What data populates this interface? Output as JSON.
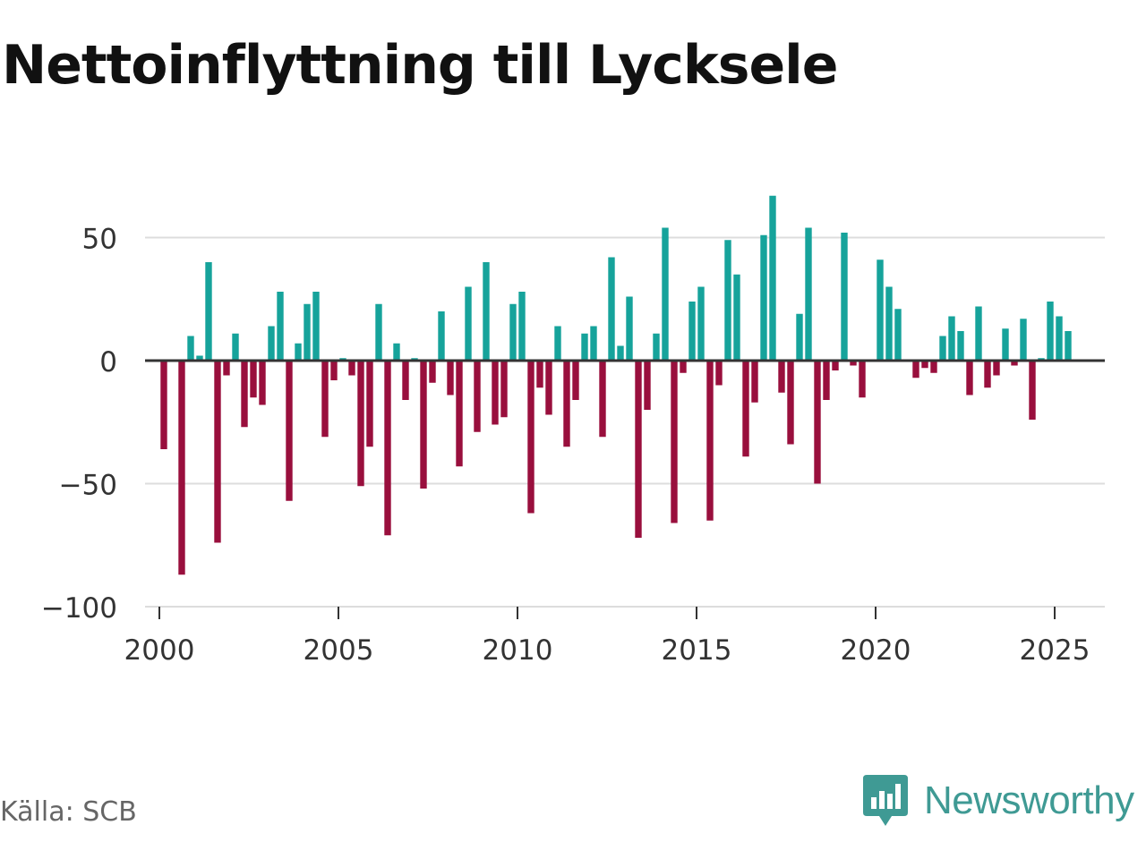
{
  "title": "Nettoinflyttning till Lycksele",
  "source": "Källa: SCB",
  "brand": {
    "name": "Newsworthy",
    "icon": "newsworthy-logo-icon",
    "color": "#3f9a94"
  },
  "colors": {
    "positive": "#16a39b",
    "negative": "#990f3d",
    "grid": "#dddddd",
    "zero_line": "#333333",
    "tick_text": "#333333"
  },
  "chart_data": {
    "type": "bar",
    "title": "Nettoinflyttning till Lycksele",
    "xlabel": "",
    "ylabel": "",
    "ylim": [
      -100,
      68
    ],
    "xlim": [
      1999.6,
      2026.4
    ],
    "yticks": [
      50,
      0,
      -50,
      -100
    ],
    "ytick_labels": [
      "50",
      "0",
      "−50",
      "−100"
    ],
    "xticks": [
      2000,
      2005,
      2010,
      2015,
      2020,
      2025
    ],
    "xtick_labels": [
      "2000",
      "2005",
      "2010",
      "2015",
      "2020",
      "2025"
    ],
    "grid": true,
    "legend": "none",
    "frequency": "quarterly",
    "x": [
      2000.125,
      2000.375,
      2000.625,
      2000.875,
      2001.125,
      2001.375,
      2001.625,
      2001.875,
      2002.125,
      2002.375,
      2002.625,
      2002.875,
      2003.125,
      2003.375,
      2003.625,
      2003.875,
      2004.125,
      2004.375,
      2004.625,
      2004.875,
      2005.125,
      2005.375,
      2005.625,
      2005.875,
      2006.125,
      2006.375,
      2006.625,
      2006.875,
      2007.125,
      2007.375,
      2007.625,
      2007.875,
      2008.125,
      2008.375,
      2008.625,
      2008.875,
      2009.125,
      2009.375,
      2009.625,
      2009.875,
      2010.125,
      2010.375,
      2010.625,
      2010.875,
      2011.125,
      2011.375,
      2011.625,
      2011.875,
      2012.125,
      2012.375,
      2012.625,
      2012.875,
      2013.125,
      2013.375,
      2013.625,
      2013.875,
      2014.125,
      2014.375,
      2014.625,
      2014.875,
      2015.125,
      2015.375,
      2015.625,
      2015.875,
      2016.125,
      2016.375,
      2016.625,
      2016.875,
      2017.125,
      2017.375,
      2017.625,
      2017.875,
      2018.125,
      2018.375,
      2018.625,
      2018.875,
      2019.125,
      2019.375,
      2019.625,
      2019.875,
      2020.125,
      2020.375,
      2020.625,
      2020.875,
      2021.125,
      2021.375,
      2021.625,
      2021.875,
      2022.125,
      2022.375,
      2022.625,
      2022.875,
      2023.125,
      2023.375,
      2023.625,
      2023.875,
      2024.125,
      2024.375,
      2024.625,
      2024.875,
      2025.125,
      2025.375,
      2025.625
    ],
    "values": [
      -36,
      0,
      -87,
      10,
      2,
      40,
      -74,
      -6,
      11,
      -27,
      -15,
      -18,
      14,
      28,
      -57,
      7,
      23,
      28,
      -31,
      -8,
      1,
      -6,
      -51,
      -35,
      23,
      -71,
      7,
      -16,
      1,
      -52,
      -9,
      20,
      -14,
      -43,
      30,
      -29,
      40,
      -26,
      -23,
      23,
      28,
      -62,
      -11,
      -22,
      14,
      -35,
      -16,
      11,
      14,
      -31,
      42,
      6,
      26,
      -72,
      -20,
      11,
      54,
      -66,
      -5,
      24,
      30,
      -65,
      -10,
      49,
      35,
      -39,
      -17,
      51,
      67,
      -13,
      -34,
      19,
      54,
      -50,
      -16,
      -4,
      52,
      -2,
      -15,
      0,
      41,
      30,
      21,
      0,
      -7,
      -3,
      -5,
      10,
      18,
      12,
      -14,
      22,
      -11,
      -6,
      13,
      -2,
      17,
      -24,
      1,
      24,
      18,
      12,
      0
    ]
  }
}
